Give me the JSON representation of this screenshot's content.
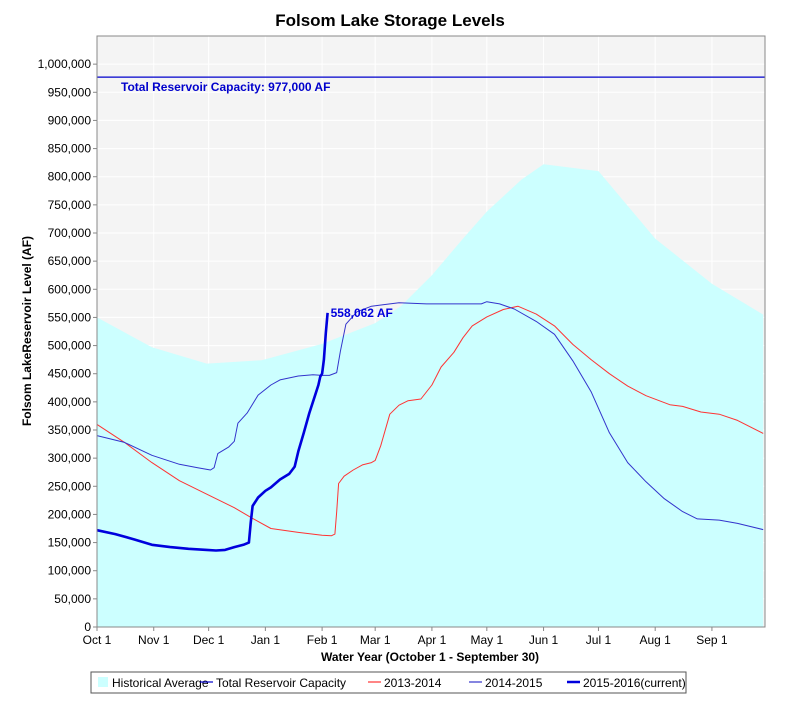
{
  "chart_data": {
    "type": "line",
    "title": "Folsom Lake Storage Levels",
    "xlabel": "Water Year (October 1 - September 30)",
    "ylabel": "Folsom LakeReservoir Level (AF)",
    "ylim": [
      0,
      1050000
    ],
    "xlim": [
      0,
      365
    ],
    "y_ticks": [
      0,
      50000,
      100000,
      150000,
      200000,
      250000,
      300000,
      350000,
      400000,
      450000,
      500000,
      550000,
      600000,
      650000,
      700000,
      750000,
      800000,
      850000,
      900000,
      950000,
      1000000
    ],
    "y_tick_labels": [
      "0",
      "50,000",
      "100,000",
      "150,000",
      "200,000",
      "250,000",
      "300,000",
      "350,000",
      "400,000",
      "450,000",
      "500,000",
      "550,000",
      "600,000",
      "650,000",
      "700,000",
      "750,000",
      "800,000",
      "850,000",
      "900,000",
      "950,000",
      "1,000,000"
    ],
    "x_ticks": [
      0,
      31,
      61,
      92,
      123,
      152,
      183,
      213,
      244,
      274,
      305,
      336
    ],
    "x_tick_labels": [
      "Oct 1",
      "Nov 1",
      "Dec 1",
      "Jan 1",
      "Feb 1",
      "Mar 1",
      "Apr 1",
      "May 1",
      "Jun 1",
      "Jul 1",
      "Aug 1",
      "Sep 1"
    ],
    "colors": {
      "historical": "#ccffff",
      "capacity": "#0000cc",
      "y2013": "#ff3333",
      "y2014": "#3333cc",
      "y2015": "#0000dd",
      "plot_bg": "#f4f4f4",
      "grid": "#ffffff"
    },
    "series": [
      {
        "name": "Historical Average",
        "kind": "area",
        "points": [
          [
            0,
            550000
          ],
          [
            30,
            497000
          ],
          [
            60,
            468000
          ],
          [
            90,
            474000
          ],
          [
            123,
            503000
          ],
          [
            152,
            540000
          ],
          [
            166,
            570000
          ],
          [
            183,
            625000
          ],
          [
            200,
            690000
          ],
          [
            213,
            738000
          ],
          [
            232,
            795000
          ],
          [
            244,
            822000
          ],
          [
            274,
            810000
          ],
          [
            305,
            690000
          ],
          [
            336,
            610000
          ],
          [
            364,
            555000
          ]
        ]
      },
      {
        "name": "Total Reservoir Capacity",
        "kind": "hline",
        "value": 977000
      },
      {
        "name": "2013-2014",
        "kind": "line",
        "points": [
          [
            0,
            360000
          ],
          [
            15,
            328000
          ],
          [
            30,
            292000
          ],
          [
            45,
            260000
          ],
          [
            60,
            236000
          ],
          [
            75,
            212000
          ],
          [
            85,
            193000
          ],
          [
            95,
            175000
          ],
          [
            110,
            168000
          ],
          [
            123,
            163000
          ],
          [
            128,
            162000
          ],
          [
            130,
            165000
          ],
          [
            131,
            205000
          ],
          [
            132,
            255000
          ],
          [
            135,
            268000
          ],
          [
            140,
            279000
          ],
          [
            145,
            288000
          ],
          [
            150,
            292000
          ],
          [
            152,
            296000
          ],
          [
            155,
            322000
          ],
          [
            160,
            378000
          ],
          [
            165,
            394000
          ],
          [
            170,
            402000
          ],
          [
            177,
            405000
          ],
          [
            183,
            430000
          ],
          [
            188,
            462000
          ],
          [
            195,
            488000
          ],
          [
            200,
            514000
          ],
          [
            205,
            535000
          ],
          [
            213,
            551000
          ],
          [
            222,
            564000
          ],
          [
            230,
            570000
          ],
          [
            240,
            556000
          ],
          [
            250,
            535000
          ],
          [
            260,
            502000
          ],
          [
            270,
            475000
          ],
          [
            280,
            450000
          ],
          [
            290,
            428000
          ],
          [
            300,
            411000
          ],
          [
            313,
            395000
          ],
          [
            320,
            392000
          ],
          [
            330,
            382000
          ],
          [
            340,
            378000
          ],
          [
            350,
            367000
          ],
          [
            364,
            344000
          ]
        ]
      },
      {
        "name": "2014-2015",
        "kind": "line",
        "points": [
          [
            0,
            340000
          ],
          [
            15,
            328000
          ],
          [
            30,
            305000
          ],
          [
            45,
            289000
          ],
          [
            55,
            283000
          ],
          [
            62,
            279000
          ],
          [
            64,
            283000
          ],
          [
            66,
            308000
          ],
          [
            72,
            320000
          ],
          [
            75,
            330000
          ],
          [
            77,
            362000
          ],
          [
            82,
            380000
          ],
          [
            88,
            412000
          ],
          [
            95,
            430000
          ],
          [
            100,
            439000
          ],
          [
            110,
            446000
          ],
          [
            118,
            448000
          ],
          [
            123,
            447000
          ],
          [
            127,
            447000
          ],
          [
            131,
            452000
          ],
          [
            133,
            490000
          ],
          [
            136,
            538000
          ],
          [
            142,
            560000
          ],
          [
            150,
            570000
          ],
          [
            165,
            576000
          ],
          [
            180,
            574000
          ],
          [
            195,
            574000
          ],
          [
            205,
            574000
          ],
          [
            210,
            574000
          ],
          [
            213,
            578000
          ],
          [
            220,
            574000
          ],
          [
            228,
            565000
          ],
          [
            240,
            543000
          ],
          [
            250,
            520000
          ],
          [
            260,
            473000
          ],
          [
            270,
            418000
          ],
          [
            280,
            345000
          ],
          [
            290,
            292000
          ],
          [
            300,
            258000
          ],
          [
            310,
            228000
          ],
          [
            320,
            205000
          ],
          [
            328,
            192000
          ],
          [
            340,
            190000
          ],
          [
            350,
            184000
          ],
          [
            364,
            173000
          ]
        ]
      },
      {
        "name": "2015-2016(current)",
        "kind": "line",
        "points": [
          [
            0,
            172000
          ],
          [
            10,
            165000
          ],
          [
            20,
            156000
          ],
          [
            30,
            146000
          ],
          [
            40,
            142000
          ],
          [
            50,
            139000
          ],
          [
            60,
            137000
          ],
          [
            65,
            136000
          ],
          [
            70,
            137000
          ],
          [
            75,
            142000
          ],
          [
            80,
            146000
          ],
          [
            83,
            150000
          ],
          [
            84,
            185000
          ],
          [
            85,
            215000
          ],
          [
            88,
            230000
          ],
          [
            92,
            242000
          ],
          [
            95,
            248000
          ],
          [
            100,
            262000
          ],
          [
            105,
            272000
          ],
          [
            108,
            285000
          ],
          [
            110,
            312000
          ],
          [
            113,
            345000
          ],
          [
            116,
            380000
          ],
          [
            119,
            410000
          ],
          [
            121,
            430000
          ],
          [
            122,
            445000
          ],
          [
            123,
            450000
          ],
          [
            124,
            475000
          ],
          [
            125,
            522000
          ],
          [
            126,
            558062
          ]
        ]
      }
    ],
    "annotations": [
      {
        "text": "Total Reservoir Capacity: 977,000 AF",
        "x": 0,
        "y": 977000
      },
      {
        "text": "558,062 AF",
        "x": 126,
        "y": 558062
      }
    ],
    "legend": {
      "position": "bottom",
      "items": [
        "Historical Average",
        "Total Reservoir Capacity",
        "2013-2014",
        "2014-2015",
        "2015-2016(current)"
      ]
    }
  }
}
